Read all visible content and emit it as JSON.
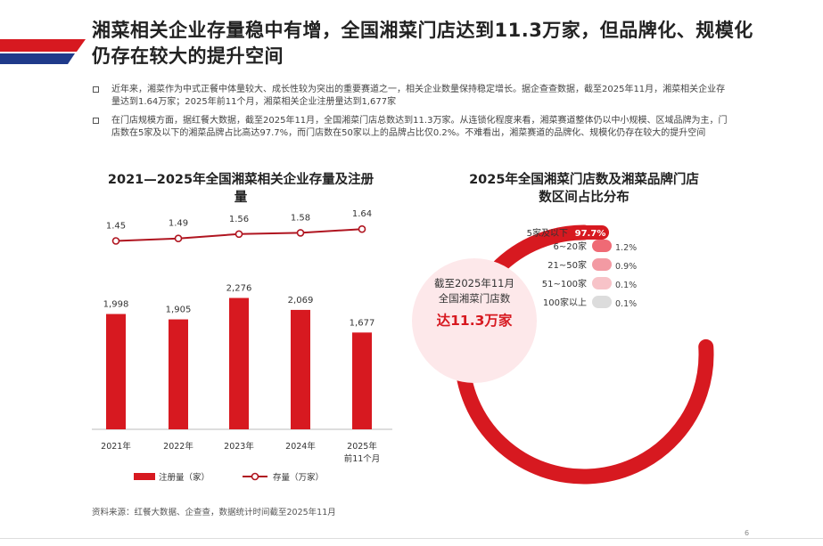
{
  "title": "湘菜相关企业存量稳中有增，全国湘菜门店达到11.3万家，但品牌化、规模化仍存在较大的提升空间",
  "bullets": [
    "近年来，湘菜作为中式正餐中体量较大、成长性较为突出的重要赛道之一，相关企业数量保持稳定增长。据企查查数据，截至2025年11月，湘菜相关企业存量达到1.64万家；2025年前11个月，湘菜相关企业注册量达到1,677家",
    "在门店规模方面，据红餐大数据，截至2025年11月，全国湘菜门店总数达到11.3万家。从连锁化程度来看，湘菜赛道整体仍以中小规模、区域品牌为主，门店数在5家及以下的湘菜品牌占比高达97.7%，而门店数在50家以上的品牌占比仅0.2%。不难看出，湘菜赛道的品牌化、规模化仍存在较大的提升空间"
  ],
  "left_chart_title": "2021—2025年全国湘菜相关企业存量及注册量",
  "right_chart_title": "2025年全国湘菜门店数及湘菜品牌门店数区间占比分布",
  "center_text": {
    "line1": "截至2025年11月",
    "line2": "全国湘菜门店数",
    "line3": "达11.3万家"
  },
  "source": "资料来源：红餐大数据、企查查，数据统计时间截至2025年11月",
  "page_number": "6",
  "colors": {
    "accent": "#d71920",
    "navy": "#1f3a8a",
    "pink_bg": "#fde8ea"
  },
  "chart_data": [
    {
      "type": "bar",
      "categories": [
        "2021年",
        "2022年",
        "2023年",
        "2024年",
        "2025年前11个月"
      ],
      "series": [
        {
          "name": "注册量（家）",
          "type": "bar",
          "values": [
            1998,
            1905,
            2276,
            2069,
            1677
          ],
          "labels": [
            "1,998",
            "1,905",
            "2,276",
            "2,069",
            "1,677"
          ]
        },
        {
          "name": "存量（万家）",
          "type": "line",
          "values": [
            1.45,
            1.49,
            1.56,
            1.58,
            1.64
          ],
          "labels": [
            "1.45",
            "1.49",
            "1.56",
            "1.58",
            "1.64"
          ]
        }
      ],
      "bar_ylim": [
        0,
        2500
      ],
      "line_ylim": [
        0,
        2.0
      ],
      "legend": "bottom"
    },
    {
      "type": "pie",
      "style": "radial-bar",
      "categories": [
        "5家及以下",
        "6~20家",
        "21~50家",
        "51~100家",
        "100家以上"
      ],
      "values": [
        97.7,
        1.2,
        0.9,
        0.1,
        0.1
      ],
      "labels": [
        "97.7%",
        "1.2%",
        "0.9%",
        "0.1%",
        "0.1%"
      ],
      "colors": [
        "#d71920",
        "#ef6a75",
        "#f39aa3",
        "#f7c3c8",
        "#dcdcdc"
      ]
    }
  ]
}
